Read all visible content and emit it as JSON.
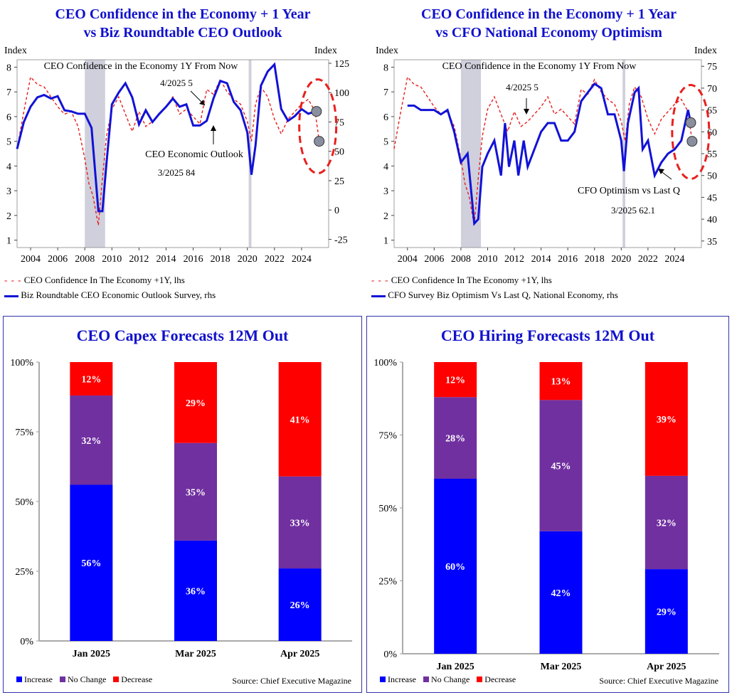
{
  "top_left": {
    "title": [
      "CEO Confidence in the Economy + 1 Year",
      "vs Biz Roundtable CEO Outlook"
    ],
    "left_axis_label": "Index",
    "right_axis_label": "Index",
    "annotations": {
      "series_label": "CEO Confidence in the Economy 1Y From Now",
      "lhs_point": "4/2025 5",
      "rhs_name": "CEO Economic Outlook",
      "rhs_point": "3/2025 84"
    },
    "legend": {
      "lhs": "CEO Confidence In The Economy +1Y, lhs",
      "rhs": "Biz Roundtable CEO Economic Outlook Survey, rhs"
    }
  },
  "top_right": {
    "title": [
      "CEO Confidence in the Economy + 1 Year",
      "vs CFO National Economy Optimism"
    ],
    "left_axis_label": "Index",
    "right_axis_label": "Index",
    "annotations": {
      "series_label": "CEO Confidence in the Economy 1Y From Now",
      "lhs_point": "4/2025 5",
      "rhs_name": "CFO Optimism vs Last Q",
      "rhs_point": "3/2025 62.1"
    },
    "legend": {
      "lhs": "CEO Confidence In The Economy +1Y, lhs",
      "rhs": "CFO Survey Biz Optimism Vs Last Q, National Economy, rhs"
    }
  },
  "colors": {
    "lhs_line": "#e8201e",
    "rhs_line": "#1212d6",
    "recession": "#cfd0dc",
    "increase": "#0000ff",
    "no_change": "#7030a0",
    "decrease": "#ff0000",
    "circle": "#e8201e"
  },
  "bottom_common": {
    "source": "Source: Chief Executive Magazine",
    "legend": [
      "Increase",
      "No Change",
      "Decrease"
    ]
  },
  "chart_data": [
    {
      "type": "line",
      "title": "CEO Confidence in the Economy + 1 Year vs Biz Roundtable CEO Outlook",
      "xlim": [
        2003,
        2026
      ],
      "x_ticks": [
        "2004",
        "2006",
        "2008",
        "2010",
        "2012",
        "2014",
        "2016",
        "2018",
        "2020",
        "2022",
        "2024"
      ],
      "y_left": {
        "label": "Index",
        "lim": [
          0.7,
          8.3
        ],
        "ticks": [
          "1",
          "2",
          "3",
          "4",
          "5",
          "6",
          "7",
          "8"
        ]
      },
      "y_right": {
        "label": "Index",
        "lim": [
          -32,
          128
        ],
        "ticks": [
          "-25",
          "0",
          "25",
          "50",
          "75",
          "100",
          "125"
        ]
      },
      "recessions": [
        [
          2008.0,
          2009.5
        ],
        [
          2020.1,
          2020.3
        ]
      ],
      "series": [
        {
          "name": "CEO Confidence In The Economy +1Y",
          "axis": "left",
          "style": "dashed",
          "x": [
            2003,
            2003.5,
            2004,
            2004.5,
            2005,
            2005.5,
            2006,
            2006.5,
            2007,
            2007.5,
            2008,
            2008.3,
            2008.6,
            2009,
            2009.3,
            2009.6,
            2010,
            2010.5,
            2011,
            2011.5,
            2012,
            2012.5,
            2013,
            2013.5,
            2014,
            2014.5,
            2015,
            2015.5,
            2016,
            2016.5,
            2017,
            2017.5,
            2018,
            2018.5,
            2019,
            2019.5,
            2020,
            2020.3,
            2020.6,
            2021,
            2021.5,
            2022,
            2022.5,
            2023,
            2023.5,
            2024,
            2024.5,
            2025,
            2025.3
          ],
          "values": [
            4.7,
            6.2,
            7.6,
            7.3,
            7.2,
            6.8,
            6.4,
            6.1,
            6.2,
            5.6,
            4.3,
            3.3,
            2.8,
            1.6,
            3.5,
            5.2,
            6.3,
            6.8,
            6.1,
            5.4,
            6.2,
            5.6,
            5.8,
            6.1,
            6.4,
            6.8,
            6.1,
            6.3,
            6.0,
            5.7,
            7.1,
            6.9,
            7.5,
            7.0,
            6.7,
            6.5,
            5.8,
            5.0,
            6.5,
            7.2,
            6.8,
            5.9,
            5.3,
            5.9,
            6.2,
            6.5,
            6.7,
            6.2,
            5.0
          ]
        },
        {
          "name": "Biz Roundtable CEO Economic Outlook Survey",
          "axis": "right",
          "style": "solid",
          "x": [
            2003,
            2003.5,
            2004,
            2004.5,
            2005,
            2005.5,
            2006,
            2006.5,
            2007,
            2007.5,
            2008,
            2008.5,
            2009,
            2009.3,
            2009.6,
            2010,
            2010.5,
            2011,
            2011.5,
            2012,
            2012.5,
            2013,
            2013.5,
            2014,
            2014.5,
            2015,
            2015.5,
            2016,
            2016.5,
            2017,
            2017.5,
            2018,
            2018.5,
            2019,
            2019.5,
            2020,
            2020.3,
            2020.6,
            2021,
            2021.5,
            2022,
            2022.5,
            2023,
            2023.5,
            2024,
            2024.5,
            2025
          ],
          "values": [
            52,
            75,
            88,
            96,
            98,
            95,
            97,
            85,
            84,
            82,
            82,
            70,
            -1,
            -1,
            40,
            90,
            100,
            108,
            96,
            73,
            85,
            75,
            82,
            88,
            95,
            88,
            90,
            72,
            72,
            76,
            95,
            110,
            108,
            92,
            85,
            66,
            30,
            55,
            106,
            118,
            124,
            86,
            76,
            80,
            86,
            82,
            84
          ]
        }
      ],
      "highlight_points": [
        {
          "x": 2025.3,
          "axis": "left",
          "value": 5
        },
        {
          "x": 2025.1,
          "axis": "right",
          "value": 84
        }
      ]
    },
    {
      "type": "line",
      "title": "CEO Confidence in the Economy + 1 Year vs CFO National Economy Optimism",
      "xlim": [
        2003,
        2026
      ],
      "x_ticks": [
        "2004",
        "2006",
        "2008",
        "2010",
        "2012",
        "2014",
        "2016",
        "2018",
        "2020",
        "2022",
        "2024"
      ],
      "y_left": {
        "label": "Index",
        "lim": [
          0.7,
          8.3
        ],
        "ticks": [
          "1",
          "2",
          "3",
          "4",
          "5",
          "6",
          "7",
          "8"
        ]
      },
      "y_right": {
        "label": "Index",
        "lim": [
          33.5,
          76.5
        ],
        "ticks": [
          "35",
          "40",
          "45",
          "50",
          "55",
          "60",
          "65",
          "70",
          "75"
        ]
      },
      "recessions": [
        [
          2008.0,
          2009.5
        ],
        [
          2020.1,
          2020.3
        ]
      ],
      "series": [
        {
          "name": "CEO Confidence In The Economy +1Y",
          "axis": "left",
          "style": "dashed",
          "x": [
            2003,
            2003.5,
            2004,
            2004.5,
            2005,
            2005.5,
            2006,
            2006.5,
            2007,
            2007.5,
            2008,
            2008.3,
            2008.6,
            2009,
            2009.3,
            2009.6,
            2010,
            2010.5,
            2011,
            2011.5,
            2012,
            2012.5,
            2013,
            2013.5,
            2014,
            2014.5,
            2015,
            2015.5,
            2016,
            2016.5,
            2017,
            2017.5,
            2018,
            2018.5,
            2019,
            2019.5,
            2020,
            2020.3,
            2020.6,
            2021,
            2021.5,
            2022,
            2022.5,
            2023,
            2023.5,
            2024,
            2024.5,
            2025,
            2025.3
          ],
          "values": [
            4.7,
            6.2,
            7.6,
            7.3,
            7.2,
            6.8,
            6.4,
            6.1,
            6.2,
            5.6,
            4.3,
            3.3,
            2.8,
            1.6,
            3.5,
            5.2,
            6.3,
            6.8,
            6.1,
            5.4,
            6.2,
            5.6,
            5.8,
            6.1,
            6.4,
            6.8,
            6.1,
            6.3,
            6.0,
            5.7,
            7.1,
            6.9,
            7.5,
            7.0,
            6.7,
            6.5,
            5.8,
            5.0,
            6.5,
            7.2,
            6.8,
            5.9,
            5.3,
            5.9,
            6.2,
            6.5,
            6.7,
            6.2,
            5.0
          ]
        },
        {
          "name": "CFO Survey Biz Optimism Vs Last Q, National Economy",
          "axis": "right",
          "style": "solid",
          "x": [
            2004,
            2004.5,
            2005,
            2005.5,
            2006,
            2006.5,
            2007,
            2007.5,
            2008,
            2008.5,
            2009,
            2009.3,
            2009.6,
            2010,
            2010.5,
            2011,
            2011.3,
            2011.6,
            2012,
            2012.3,
            2012.7,
            2013,
            2013.5,
            2014,
            2014.5,
            2015,
            2015.5,
            2016,
            2016.5,
            2017,
            2017.5,
            2018,
            2018.5,
            2019,
            2019.5,
            2020,
            2020.2,
            2020.5,
            2021,
            2021.3,
            2021.6,
            2022,
            2022.5,
            2023,
            2023.5,
            2024,
            2024.5,
            2025,
            2025.2
          ],
          "values": [
            66,
            66,
            65,
            65,
            65,
            64,
            65,
            60,
            53,
            55,
            39,
            40,
            52,
            55,
            58,
            50,
            62,
            52,
            58,
            50,
            58,
            52,
            56,
            60,
            62,
            62,
            58,
            58,
            60,
            67,
            69,
            71,
            70,
            64,
            64,
            58,
            51,
            62,
            69,
            70,
            56,
            58,
            50,
            53,
            55,
            56,
            58,
            65,
            62.1
          ]
        }
      ],
      "highlight_points": [
        {
          "x": 2025.3,
          "axis": "left",
          "value": 5
        },
        {
          "x": 2025.2,
          "axis": "right",
          "value": 62.1
        }
      ]
    },
    {
      "type": "bar",
      "stacked": true,
      "title": "CEO Capex Forecasts 12M Out",
      "categories": [
        "Jan 2025",
        "Mar 2025",
        "Apr 2025"
      ],
      "y_ticks": [
        "0%",
        "25%",
        "50%",
        "75%",
        "100%"
      ],
      "ylim": [
        0,
        100
      ],
      "series": [
        {
          "name": "Increase",
          "values": [
            56,
            36,
            26
          ],
          "labels": [
            "56%",
            "36%",
            "26%"
          ]
        },
        {
          "name": "No Change",
          "values": [
            32,
            35,
            33
          ],
          "labels": [
            "32%",
            "35%",
            "33%"
          ]
        },
        {
          "name": "Decrease",
          "values": [
            12,
            29,
            41
          ],
          "labels": [
            "12%",
            "29%",
            "41%"
          ]
        }
      ]
    },
    {
      "type": "bar",
      "stacked": true,
      "title": "CEO Hiring Forecasts 12M Out",
      "categories": [
        "Jan 2025",
        "Mar 2025",
        "Apr 2025"
      ],
      "y_ticks": [
        "0%",
        "25%",
        "50%",
        "75%",
        "100%"
      ],
      "ylim": [
        0,
        100
      ],
      "series": [
        {
          "name": "Increase",
          "values": [
            60,
            42,
            29
          ],
          "labels": [
            "60%",
            "42%",
            "29%"
          ]
        },
        {
          "name": "No Change",
          "values": [
            28,
            45,
            32
          ],
          "labels": [
            "28%",
            "45%",
            "32%"
          ]
        },
        {
          "name": "Decrease",
          "values": [
            12,
            13,
            39
          ],
          "labels": [
            "12%",
            "13%",
            "39%"
          ]
        }
      ]
    }
  ]
}
